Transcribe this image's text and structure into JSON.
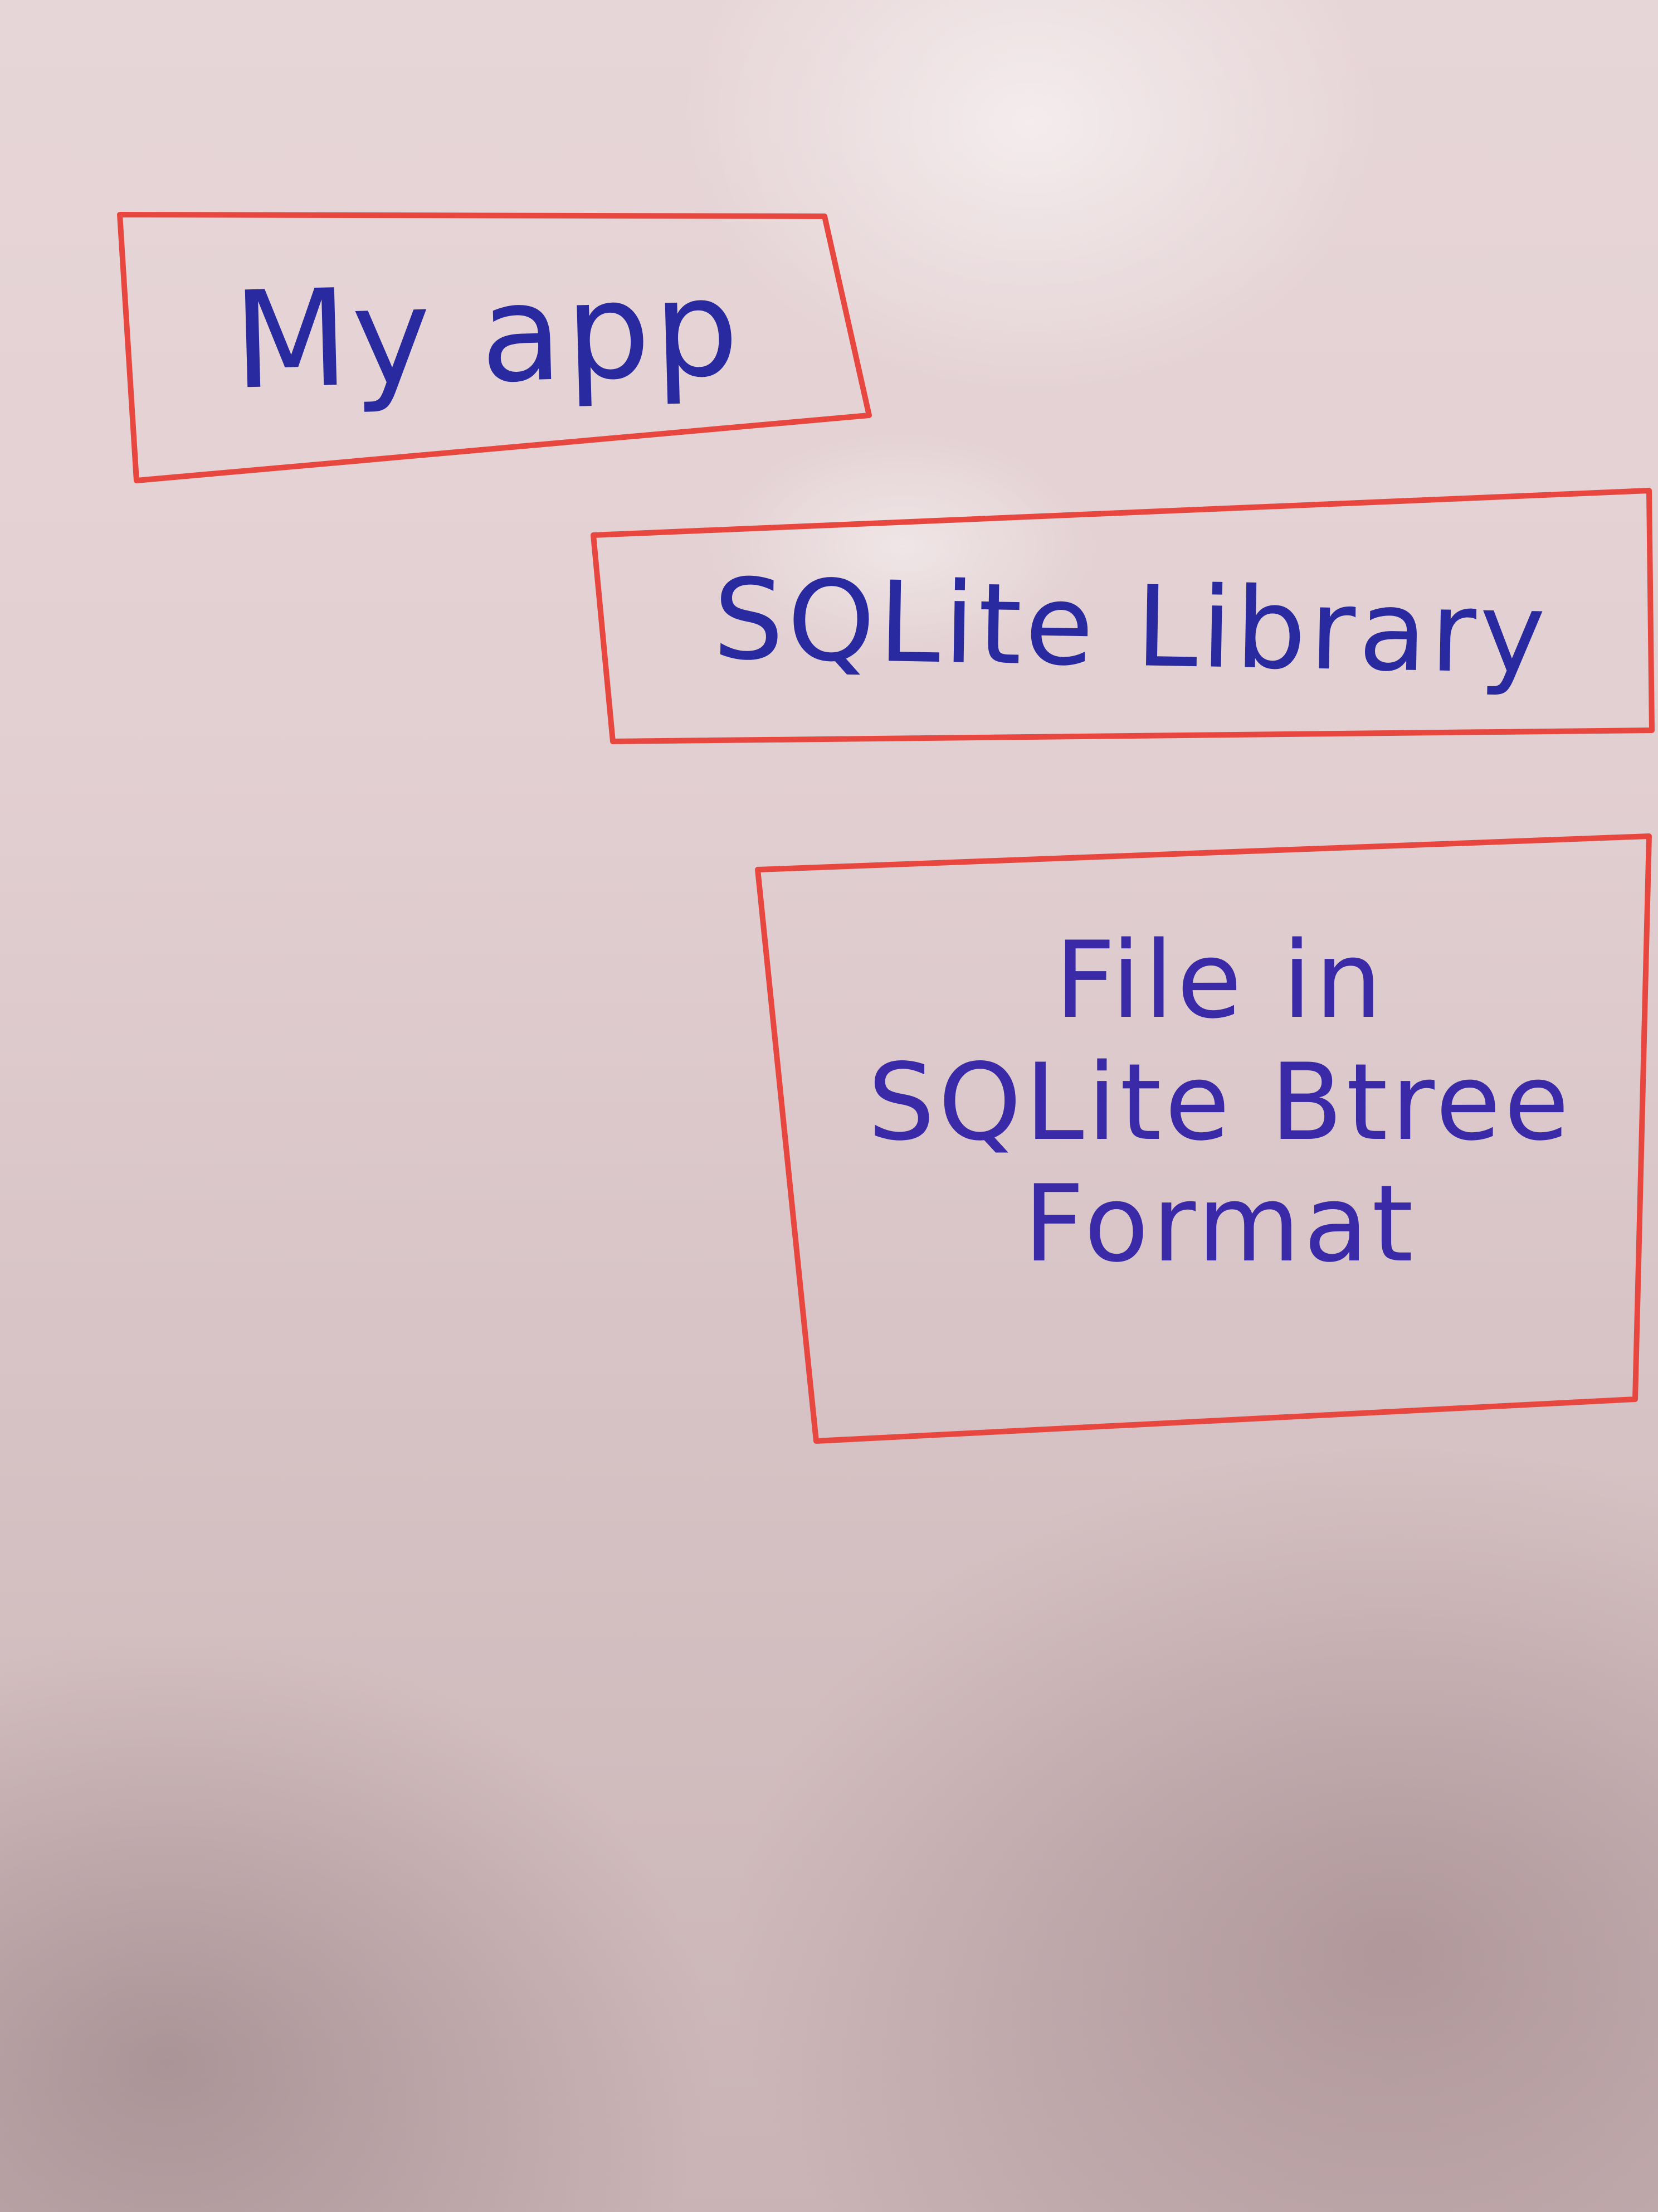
{
  "diagram": {
    "colors": {
      "box_outline": "#e8473f",
      "text": "#2a2aa0"
    },
    "boxes": [
      {
        "id": "app",
        "lines": [
          "My app"
        ]
      },
      {
        "id": "library",
        "lines": [
          "SQLite Library"
        ]
      },
      {
        "id": "file",
        "lines": [
          "File in",
          "SQLite Btree",
          "Format"
        ]
      }
    ]
  }
}
